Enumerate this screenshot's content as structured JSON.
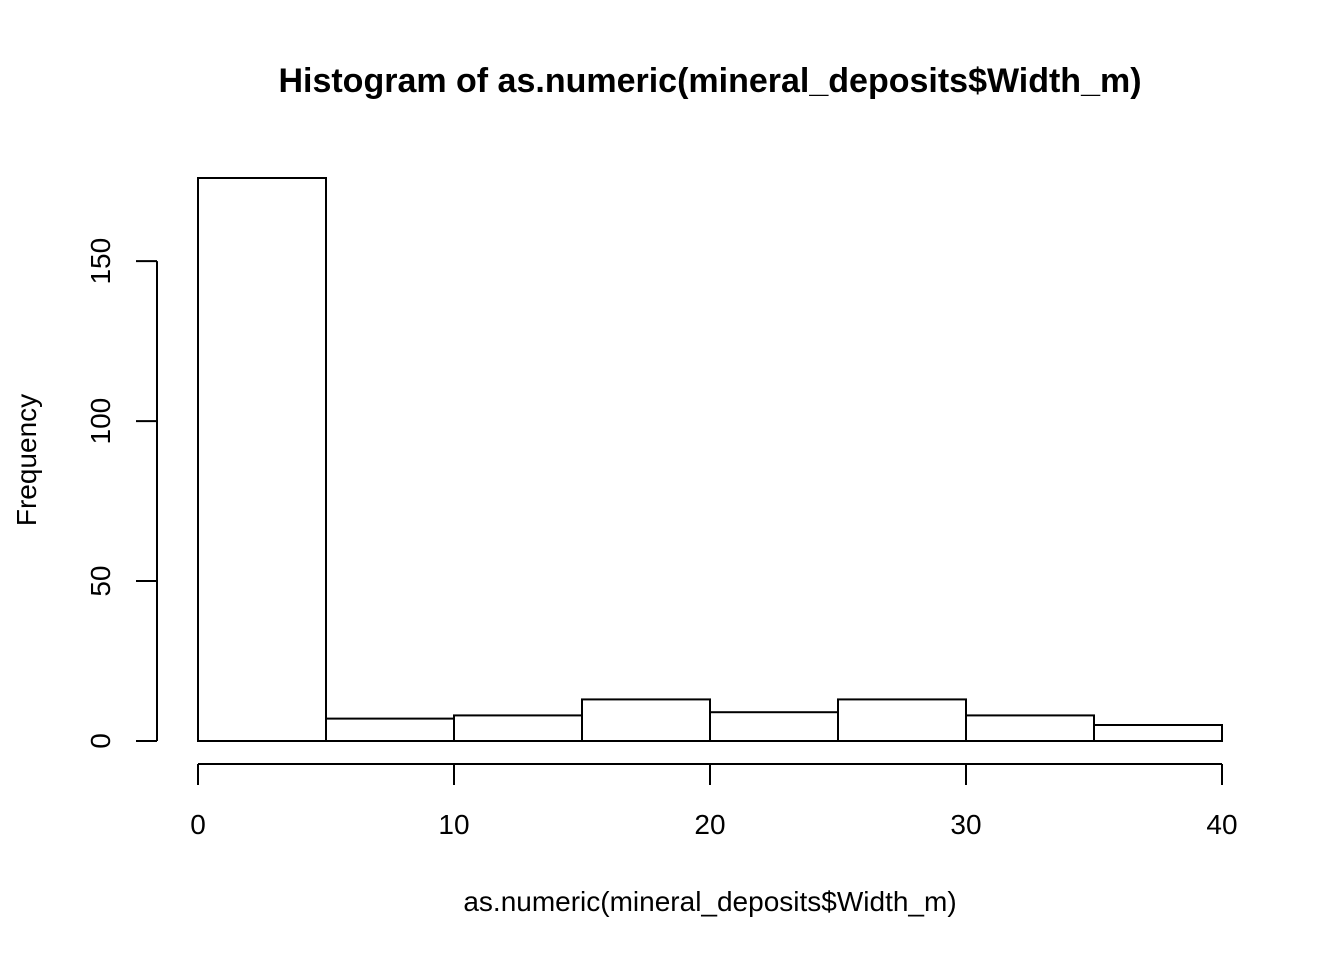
{
  "chart_data": {
    "type": "bar",
    "title": "Histogram of as.numeric(mineral_deposits$Width_m)",
    "xlabel": "as.numeric(mineral_deposits$Width_m)",
    "ylabel": "Frequency",
    "bins": [
      {
        "x0": 0,
        "x1": 5,
        "count": 176
      },
      {
        "x0": 5,
        "x1": 10,
        "count": 7
      },
      {
        "x0": 10,
        "x1": 15,
        "count": 8
      },
      {
        "x0": 15,
        "x1": 20,
        "count": 13
      },
      {
        "x0": 20,
        "x1": 25,
        "count": 9
      },
      {
        "x0": 25,
        "x1": 30,
        "count": 13
      },
      {
        "x0": 30,
        "x1": 35,
        "count": 8
      },
      {
        "x0": 35,
        "x1": 40,
        "count": 5
      }
    ],
    "xlim": [
      0,
      40
    ],
    "ylim": [
      0,
      176
    ],
    "x_ticks": [
      0,
      10,
      20,
      30,
      40
    ],
    "y_ticks": [
      0,
      50,
      100,
      150
    ],
    "grid": false,
    "legend": "none",
    "bar_fill": "#ffffff",
    "line_color": "#000000"
  }
}
